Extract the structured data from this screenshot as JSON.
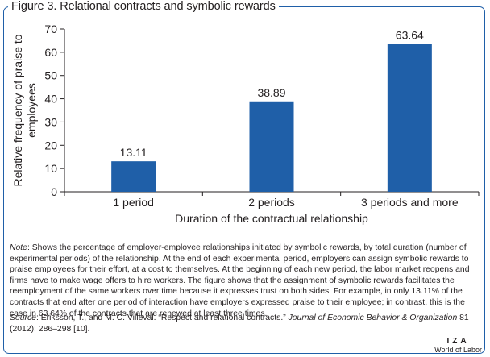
{
  "figure": {
    "title": "Figure 3. Relational contracts and symbolic rewards"
  },
  "chart_data": {
    "type": "bar",
    "categories": [
      "1 period",
      "2 periods",
      "3 periods and more"
    ],
    "values": [
      13.11,
      38.89,
      63.64
    ],
    "data_labels": [
      "13.11",
      "38.89",
      "63.64"
    ],
    "xlabel": "Duration of the contractual relationship",
    "ylabel": "Relative frequency of praise to employees",
    "ylim": [
      0,
      70
    ],
    "yticks": [
      "0",
      "10",
      "20",
      "30",
      "40",
      "50",
      "60",
      "70"
    ],
    "grid": false,
    "bar_color": "#1f5fa8"
  },
  "note": {
    "lead": "Note",
    "text": ": Shows the percentage of employer-employee relationships initiated by symbolic rewards, by total duration (number of experimental periods) of the relationship. At the end of each experimental period, employers can assign symbolic rewards to praise employees for their effort, at a cost to themselves. At the beginning of each new period, the labor market reopens and firms have to make wage offers to hire workers. The figure shows that the assignment of symbolic rewards facilitates the reemployment of the same workers over time because it expresses trust on both sides. For example, in only 13.11% of the contracts that end after one period of interaction have employers expressed praise to their employee; in contrast, this is the case in 63.64% of the contracts that are renewed at least three times."
  },
  "source": {
    "lead": "Source",
    "text_before": ": Eriksson, T., and M. C. Villeval. “Respect and relational contracts.” ",
    "journal": "Journal of Economic Behavior & Organization",
    "text_after": " 81 (2012): 286–298 [10]."
  },
  "logo": {
    "mark": "IZA",
    "sub": "World of Labor"
  }
}
